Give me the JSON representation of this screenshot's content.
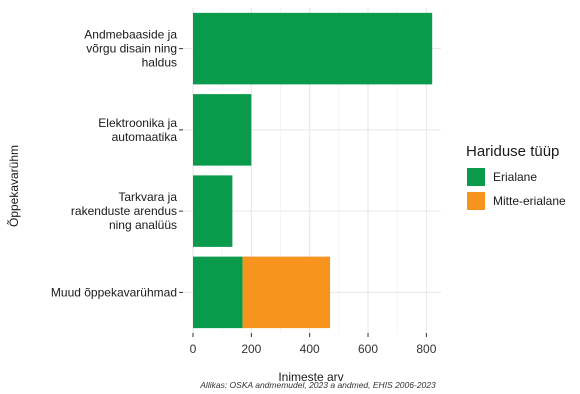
{
  "chart_data": {
    "type": "bar",
    "orientation": "horizontal",
    "stacked": true,
    "categories": [
      "Andmebaaside ja\nvõrgu disain ning\nhaldus",
      "Elektroonika ja\nautomaatika",
      "Tarkvara ja\nrakenduste arendus\nning analüüs",
      "Muud õppekavarühmad"
    ],
    "series": [
      {
        "name": "Erialane",
        "values": [
          820,
          200,
          135,
          170
        ],
        "color": "#0a9a4b"
      },
      {
        "name": "Mitte-erialane",
        "values": [
          0,
          0,
          0,
          300
        ],
        "color": "#f7941d"
      }
    ],
    "xlabel": "Inimeste arv",
    "ylabel": "Õppekavarühm",
    "xlim": [
      0,
      870
    ],
    "xticks": [
      0,
      200,
      400,
      600,
      800
    ],
    "legend_title": "Hariduse tüüp",
    "legend_position": "right",
    "grid": true,
    "caption": "Allikas: OSKA andmemudel, 2023 a andmed, EHIS 2006-2023"
  }
}
